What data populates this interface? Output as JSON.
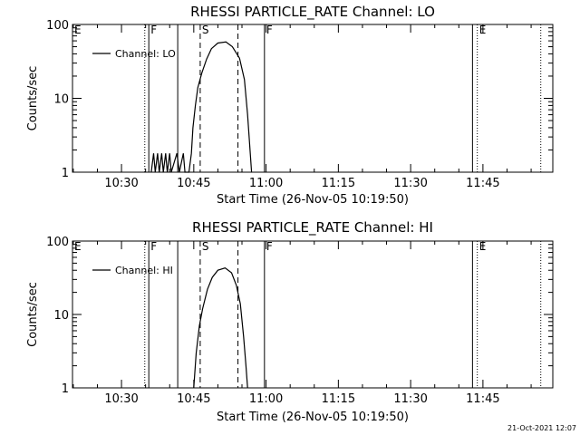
{
  "chart_data": [
    {
      "type": "line",
      "title": "RHESSI PARTICLE_RATE Channel: LO",
      "xlabel": "Start Time (26-Nov-05 10:19:50)",
      "ylabel": "Counts/sec",
      "yscale": "log",
      "ylim": [
        1,
        100
      ],
      "xlim": [
        "10:19:50",
        "11:59:30"
      ],
      "x_ticks": [
        "10:30",
        "10:45",
        "11:00",
        "11:15",
        "11:30",
        "11:45"
      ],
      "y_ticks": [
        "1",
        "10",
        "100"
      ],
      "legend": {
        "position": "top-left",
        "entries": [
          "Channel: LO"
        ]
      },
      "series": [
        {
          "name": "Channel: LO",
          "points": [
            [
              "10:36:10",
              1.0
            ],
            [
              "10:36:40",
              1.8
            ],
            [
              "10:37:00",
              1.0
            ],
            [
              "10:37:30",
              1.8
            ],
            [
              "10:37:50",
              1.0
            ],
            [
              "10:38:20",
              1.8
            ],
            [
              "10:38:40",
              1.0
            ],
            [
              "10:39:10",
              1.8
            ],
            [
              "10:39:30",
              1.0
            ],
            [
              "10:40:00",
              1.8
            ],
            [
              "10:40:20",
              1.0
            ],
            [
              "10:41:30",
              1.8
            ],
            [
              "10:42:00",
              1.0
            ],
            [
              "10:42:50",
              1.8
            ],
            [
              "10:43:10",
              1.0
            ],
            [
              "10:44:00",
              1.0
            ],
            [
              "10:44:30",
              1.8
            ],
            [
              "10:44:50",
              4.0
            ],
            [
              "10:45:20",
              8.0
            ],
            [
              "10:45:50",
              14.0
            ],
            [
              "10:46:40",
              22.0
            ],
            [
              "10:47:40",
              34.0
            ],
            [
              "10:48:40",
              47.0
            ],
            [
              "10:50:00",
              56.0
            ],
            [
              "10:51:40",
              58.0
            ],
            [
              "10:53:00",
              50.0
            ],
            [
              "10:54:30",
              35.0
            ],
            [
              "10:55:30",
              18.0
            ],
            [
              "10:56:10",
              6.0
            ],
            [
              "10:57:00",
              1.0
            ]
          ]
        }
      ],
      "markers": [
        {
          "label": "E",
          "time": "10:19:50",
          "style": "dotted"
        },
        {
          "label": "",
          "time": "10:34:50",
          "style": "dotted"
        },
        {
          "label": "F",
          "time": "10:35:40",
          "style": "solid"
        },
        {
          "label": "",
          "time": "10:41:40",
          "style": "solid"
        },
        {
          "label": "S",
          "time": "10:46:20",
          "style": "dashed"
        },
        {
          "label": "",
          "time": "10:54:10",
          "style": "dashed"
        },
        {
          "label": "F",
          "time": "10:59:40",
          "style": "solid"
        },
        {
          "label": "",
          "time": "11:42:50",
          "style": "solid"
        },
        {
          "label": "E",
          "time": "11:43:50",
          "style": "dotted"
        },
        {
          "label": "",
          "time": "11:57:00",
          "style": "dotted"
        }
      ]
    },
    {
      "type": "line",
      "title": "RHESSI PARTICLE_RATE Channel: HI",
      "xlabel": "Start Time (26-Nov-05 10:19:50)",
      "ylabel": "Counts/sec",
      "yscale": "log",
      "ylim": [
        1,
        100
      ],
      "xlim": [
        "10:19:50",
        "11:59:30"
      ],
      "x_ticks": [
        "10:30",
        "10:45",
        "11:00",
        "11:15",
        "11:30",
        "11:45"
      ],
      "y_ticks": [
        "1",
        "10",
        "100"
      ],
      "legend": {
        "position": "top-left",
        "entries": [
          "Channel: HI"
        ]
      },
      "series": [
        {
          "name": "Channel: HI",
          "points": [
            [
              "10:45:00",
              1.0
            ],
            [
              "10:45:30",
              3.0
            ],
            [
              "10:46:10",
              7.0
            ],
            [
              "10:46:50",
              12.0
            ],
            [
              "10:47:50",
              22.0
            ],
            [
              "10:48:50",
              32.0
            ],
            [
              "10:50:00",
              40.0
            ],
            [
              "10:51:30",
              43.0
            ],
            [
              "10:52:50",
              37.0
            ],
            [
              "10:53:50",
              25.0
            ],
            [
              "10:54:40",
              14.0
            ],
            [
              "10:55:20",
              5.0
            ],
            [
              "10:55:50",
              2.0
            ],
            [
              "10:56:10",
              1.0
            ]
          ]
        }
      ],
      "markers": [
        {
          "label": "E",
          "time": "10:19:50",
          "style": "dotted"
        },
        {
          "label": "",
          "time": "10:34:50",
          "style": "dotted"
        },
        {
          "label": "F",
          "time": "10:35:40",
          "style": "solid"
        },
        {
          "label": "",
          "time": "10:41:40",
          "style": "solid"
        },
        {
          "label": "S",
          "time": "10:46:20",
          "style": "dashed"
        },
        {
          "label": "",
          "time": "10:54:10",
          "style": "dashed"
        },
        {
          "label": "F",
          "time": "10:59:40",
          "style": "solid"
        },
        {
          "label": "",
          "time": "11:42:50",
          "style": "solid"
        },
        {
          "label": "E",
          "time": "11:43:50",
          "style": "dotted"
        },
        {
          "label": "",
          "time": "11:57:00",
          "style": "dotted"
        }
      ]
    }
  ],
  "footer": {
    "timestamp": "21-Oct-2021 12:07"
  }
}
